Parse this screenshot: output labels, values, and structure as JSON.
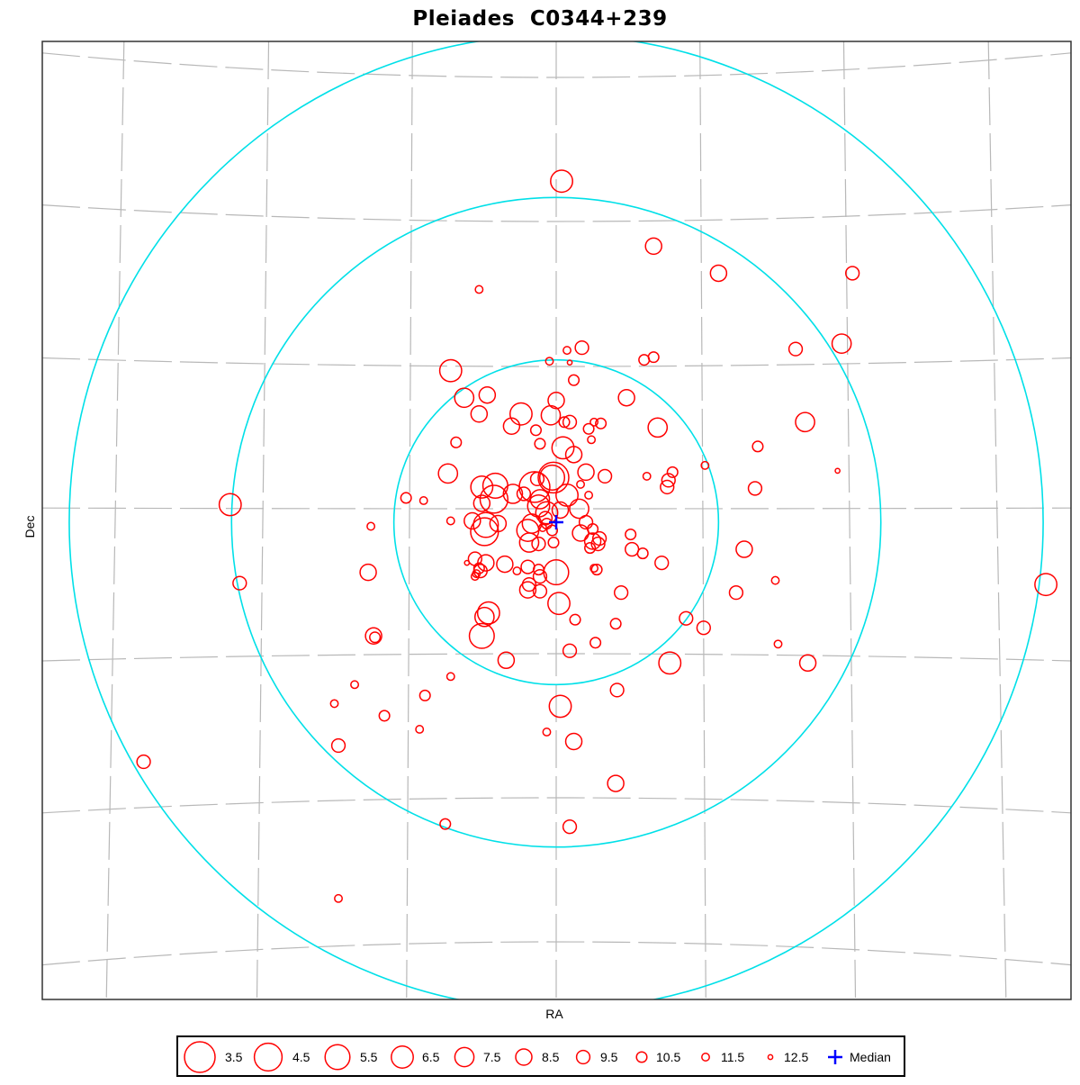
{
  "chart_data": {
    "type": "scatter",
    "title": "Pleiades  C0344+239",
    "xlabel": "RA",
    "ylabel": "Dec",
    "grid": true,
    "projection": "sky-gnomonic",
    "colors": {
      "stars": "#ff0000",
      "rings": "#00e0e8",
      "median": "#0000ff",
      "grid": "#b8b8b8"
    },
    "x_range": [
      -3.6,
      3.6
    ],
    "y_range": [
      -3.35,
      3.35
    ],
    "rings": [
      1.2,
      2.4,
      3.6
    ],
    "median": {
      "x": 0.0,
      "y": 0.0,
      "label": "Median"
    },
    "legend_title": "",
    "legend": [
      {
        "mag": 3.5,
        "label": "3.5"
      },
      {
        "mag": 4.5,
        "label": "4.5"
      },
      {
        "mag": 5.5,
        "label": "5.5"
      },
      {
        "mag": 6.5,
        "label": "6.5"
      },
      {
        "mag": 7.5,
        "label": "7.5"
      },
      {
        "mag": 8.5,
        "label": "8.5"
      },
      {
        "mag": 9.5,
        "label": "9.5"
      },
      {
        "mag": 10.5,
        "label": "10.5"
      },
      {
        "mag": 11.5,
        "label": "11.5"
      },
      {
        "mag": 12.5,
        "label": "12.5"
      }
    ],
    "stars": [
      {
        "x": 0.04,
        "y": 2.52,
        "mag": 6.5
      },
      {
        "x": 0.72,
        "y": 2.04,
        "mag": 8.5
      },
      {
        "x": 1.2,
        "y": 1.84,
        "mag": 8.5
      },
      {
        "x": 2.19,
        "y": 1.84,
        "mag": 9.5
      },
      {
        "x": -0.57,
        "y": 1.72,
        "mag": 11.5
      },
      {
        "x": 1.77,
        "y": 1.28,
        "mag": 9.5
      },
      {
        "x": 2.11,
        "y": 1.32,
        "mag": 7.5
      },
      {
        "x": 0.19,
        "y": 1.29,
        "mag": 9.5
      },
      {
        "x": 0.08,
        "y": 1.27,
        "mag": 11.5
      },
      {
        "x": 0.72,
        "y": 1.22,
        "mag": 10.5
      },
      {
        "x": 0.65,
        "y": 1.2,
        "mag": 10.5
      },
      {
        "x": -0.05,
        "y": 1.19,
        "mag": 11.5
      },
      {
        "x": 0.1,
        "y": 1.18,
        "mag": 12.5
      },
      {
        "x": -0.78,
        "y": 1.12,
        "mag": 6.5
      },
      {
        "x": 0.13,
        "y": 1.05,
        "mag": 10.5
      },
      {
        "x": -0.68,
        "y": 0.92,
        "mag": 7.5
      },
      {
        "x": -0.51,
        "y": 0.94,
        "mag": 8.5
      },
      {
        "x": 0.52,
        "y": 0.92,
        "mag": 8.5
      },
      {
        "x": 0.0,
        "y": 0.9,
        "mag": 8.5
      },
      {
        "x": -0.57,
        "y": 0.8,
        "mag": 8.5
      },
      {
        "x": -0.26,
        "y": 0.8,
        "mag": 6.5
      },
      {
        "x": -0.04,
        "y": 0.79,
        "mag": 7.5
      },
      {
        "x": 0.06,
        "y": 0.74,
        "mag": 10.5
      },
      {
        "x": 0.28,
        "y": 0.74,
        "mag": 11.5
      },
      {
        "x": 0.1,
        "y": 0.74,
        "mag": 9.5
      },
      {
        "x": 0.33,
        "y": 0.73,
        "mag": 10.5
      },
      {
        "x": 0.75,
        "y": 0.7,
        "mag": 7.5
      },
      {
        "x": 1.84,
        "y": 0.74,
        "mag": 7.5
      },
      {
        "x": -0.33,
        "y": 0.71,
        "mag": 8.5
      },
      {
        "x": 0.24,
        "y": 0.69,
        "mag": 10.5
      },
      {
        "x": -0.15,
        "y": 0.68,
        "mag": 10.5
      },
      {
        "x": 0.26,
        "y": 0.61,
        "mag": 11.5
      },
      {
        "x": -0.74,
        "y": 0.59,
        "mag": 10.5
      },
      {
        "x": -0.12,
        "y": 0.58,
        "mag": 10.5
      },
      {
        "x": 0.05,
        "y": 0.55,
        "mag": 6.5
      },
      {
        "x": 0.13,
        "y": 0.5,
        "mag": 8.5
      },
      {
        "x": 1.49,
        "y": 0.56,
        "mag": 10.5
      },
      {
        "x": -0.8,
        "y": 0.36,
        "mag": 7.5
      },
      {
        "x": -0.14,
        "y": 0.32,
        "mag": 9.5
      },
      {
        "x": -0.03,
        "y": 0.33,
        "mag": 5.5
      },
      {
        "x": -0.02,
        "y": 0.33,
        "mag": 3.5
      },
      {
        "x": 0.22,
        "y": 0.37,
        "mag": 8.5
      },
      {
        "x": 0.36,
        "y": 0.34,
        "mag": 9.5
      },
      {
        "x": 0.18,
        "y": 0.28,
        "mag": 11.5
      },
      {
        "x": 0.67,
        "y": 0.34,
        "mag": 11.5
      },
      {
        "x": 0.86,
        "y": 0.37,
        "mag": 10.5
      },
      {
        "x": 0.83,
        "y": 0.31,
        "mag": 9.5
      },
      {
        "x": 1.1,
        "y": 0.42,
        "mag": 11.5
      },
      {
        "x": 2.08,
        "y": 0.38,
        "mag": 12.5
      },
      {
        "x": -0.55,
        "y": 0.26,
        "mag": 6.5
      },
      {
        "x": -0.45,
        "y": 0.27,
        "mag": 5.5
      },
      {
        "x": -0.16,
        "y": 0.26,
        "mag": 3.5
      },
      {
        "x": -0.32,
        "y": 0.21,
        "mag": 7.5
      },
      {
        "x": -0.24,
        "y": 0.21,
        "mag": 9.5
      },
      {
        "x": -0.46,
        "y": 0.17,
        "mag": 4.5
      },
      {
        "x": -0.55,
        "y": 0.14,
        "mag": 8.5
      },
      {
        "x": -0.12,
        "y": 0.17,
        "mag": 7.5
      },
      {
        "x": 0.08,
        "y": 0.2,
        "mag": 6.5
      },
      {
        "x": 0.24,
        "y": 0.2,
        "mag": 11.5
      },
      {
        "x": 0.82,
        "y": 0.26,
        "mag": 9.5
      },
      {
        "x": 1.47,
        "y": 0.25,
        "mag": 9.5
      },
      {
        "x": -1.11,
        "y": 0.18,
        "mag": 10.5
      },
      {
        "x": -0.98,
        "y": 0.16,
        "mag": 11.5
      },
      {
        "x": -2.41,
        "y": 0.13,
        "mag": 6.5
      },
      {
        "x": -0.13,
        "y": 0.12,
        "mag": 6.5
      },
      {
        "x": -0.07,
        "y": 0.07,
        "mag": 6.5
      },
      {
        "x": 0.03,
        "y": 0.09,
        "mag": 8.5
      },
      {
        "x": 0.17,
        "y": 0.1,
        "mag": 7.5
      },
      {
        "x": -0.08,
        "y": 0.03,
        "mag": 9.5
      },
      {
        "x": -0.78,
        "y": 0.01,
        "mag": 11.5
      },
      {
        "x": -0.62,
        "y": 0.01,
        "mag": 8.5
      },
      {
        "x": -0.52,
        "y": -0.02,
        "mag": 5.5
      },
      {
        "x": -0.43,
        "y": -0.01,
        "mag": 8.5
      },
      {
        "x": -0.18,
        "y": -0.01,
        "mag": 7.5
      },
      {
        "x": -0.07,
        "y": -0.01,
        "mag": 10.5
      },
      {
        "x": 0.22,
        "y": 0.0,
        "mag": 9.5
      },
      {
        "x": -0.1,
        "y": -0.04,
        "mag": 11.5
      },
      {
        "x": 0.27,
        "y": -0.05,
        "mag": 10.5
      },
      {
        "x": -1.37,
        "y": -0.03,
        "mag": 11.5
      },
      {
        "x": -0.53,
        "y": -0.07,
        "mag": 4.5
      },
      {
        "x": -0.21,
        "y": -0.06,
        "mag": 6.5
      },
      {
        "x": -0.03,
        "y": -0.06,
        "mag": 10.5
      },
      {
        "x": 0.18,
        "y": -0.08,
        "mag": 8.5
      },
      {
        "x": 0.32,
        "y": -0.12,
        "mag": 9.5
      },
      {
        "x": 0.27,
        "y": -0.14,
        "mag": 8.5
      },
      {
        "x": 0.55,
        "y": -0.09,
        "mag": 10.5
      },
      {
        "x": -0.2,
        "y": -0.15,
        "mag": 7.5
      },
      {
        "x": -0.13,
        "y": -0.16,
        "mag": 9.5
      },
      {
        "x": -0.02,
        "y": -0.15,
        "mag": 10.5
      },
      {
        "x": 0.25,
        "y": -0.19,
        "mag": 10.5
      },
      {
        "x": 0.31,
        "y": -0.16,
        "mag": 9.5
      },
      {
        "x": 0.56,
        "y": -0.2,
        "mag": 9.5
      },
      {
        "x": 0.64,
        "y": -0.23,
        "mag": 10.5
      },
      {
        "x": 1.39,
        "y": -0.2,
        "mag": 8.5
      },
      {
        "x": -0.6,
        "y": -0.27,
        "mag": 9.5
      },
      {
        "x": -0.66,
        "y": -0.3,
        "mag": 12.5
      },
      {
        "x": -0.52,
        "y": -0.3,
        "mag": 8.5
      },
      {
        "x": -0.38,
        "y": -0.31,
        "mag": 8.5
      },
      {
        "x": -0.21,
        "y": -0.33,
        "mag": 9.5
      },
      {
        "x": -0.13,
        "y": -0.35,
        "mag": 10.5
      },
      {
        "x": 0.28,
        "y": -0.34,
        "mag": 11.5
      },
      {
        "x": 0.78,
        "y": -0.3,
        "mag": 9.5
      },
      {
        "x": -0.57,
        "y": -0.34,
        "mag": 10.5
      },
      {
        "x": -0.56,
        "y": -0.36,
        "mag": 9.5
      },
      {
        "x": -0.59,
        "y": -0.38,
        "mag": 11.5
      },
      {
        "x": -0.29,
        "y": -0.36,
        "mag": 11.5
      },
      {
        "x": 0.3,
        "y": -0.35,
        "mag": 10.5
      },
      {
        "x": -1.39,
        "y": -0.37,
        "mag": 8.5
      },
      {
        "x": -0.12,
        "y": -0.4,
        "mag": 9.5
      },
      {
        "x": 0.0,
        "y": -0.37,
        "mag": 5.5
      },
      {
        "x": -0.6,
        "y": -0.4,
        "mag": 11.5
      },
      {
        "x": -0.2,
        "y": -0.46,
        "mag": 9.5
      },
      {
        "x": -2.34,
        "y": -0.45,
        "mag": 9.5
      },
      {
        "x": -0.21,
        "y": -0.5,
        "mag": 8.5
      },
      {
        "x": -0.12,
        "y": -0.51,
        "mag": 9.5
      },
      {
        "x": 0.48,
        "y": -0.52,
        "mag": 9.5
      },
      {
        "x": 1.33,
        "y": -0.52,
        "mag": 9.5
      },
      {
        "x": 1.62,
        "y": -0.43,
        "mag": 11.5
      },
      {
        "x": 0.02,
        "y": -0.6,
        "mag": 6.5
      },
      {
        "x": -0.5,
        "y": -0.67,
        "mag": 6.5
      },
      {
        "x": -0.53,
        "y": -0.7,
        "mag": 7.5
      },
      {
        "x": 0.14,
        "y": -0.72,
        "mag": 10.5
      },
      {
        "x": 0.44,
        "y": -0.75,
        "mag": 10.5
      },
      {
        "x": 0.96,
        "y": -0.71,
        "mag": 9.5
      },
      {
        "x": 1.09,
        "y": -0.78,
        "mag": 9.5
      },
      {
        "x": -0.55,
        "y": -0.84,
        "mag": 5.5
      },
      {
        "x": -1.35,
        "y": -0.84,
        "mag": 8.5
      },
      {
        "x": -1.34,
        "y": -0.85,
        "mag": 10.5
      },
      {
        "x": 0.29,
        "y": -0.89,
        "mag": 10.5
      },
      {
        "x": 0.1,
        "y": -0.95,
        "mag": 9.5
      },
      {
        "x": 1.64,
        "y": -0.9,
        "mag": 11.5
      },
      {
        "x": -0.37,
        "y": -1.02,
        "mag": 8.5
      },
      {
        "x": 0.84,
        "y": -1.04,
        "mag": 6.5
      },
      {
        "x": 1.86,
        "y": -1.04,
        "mag": 8.5
      },
      {
        "x": -0.78,
        "y": -1.14,
        "mag": 11.5
      },
      {
        "x": -1.49,
        "y": -1.2,
        "mag": 11.5
      },
      {
        "x": -0.97,
        "y": -1.28,
        "mag": 10.5
      },
      {
        "x": 0.45,
        "y": -1.24,
        "mag": 9.5
      },
      {
        "x": -1.64,
        "y": -1.34,
        "mag": 11.5
      },
      {
        "x": 0.03,
        "y": -1.36,
        "mag": 6.5
      },
      {
        "x": -1.27,
        "y": -1.43,
        "mag": 10.5
      },
      {
        "x": -1.01,
        "y": -1.53,
        "mag": 11.5
      },
      {
        "x": -0.07,
        "y": -1.55,
        "mag": 11.5
      },
      {
        "x": 0.13,
        "y": -1.62,
        "mag": 8.5
      },
      {
        "x": -1.61,
        "y": -1.65,
        "mag": 9.5
      },
      {
        "x": 0.44,
        "y": -1.93,
        "mag": 8.5
      },
      {
        "x": -3.05,
        "y": -1.77,
        "mag": 9.5
      },
      {
        "x": -0.82,
        "y": -2.23,
        "mag": 10.5
      },
      {
        "x": 0.1,
        "y": -2.25,
        "mag": 9.5
      },
      {
        "x": -1.61,
        "y": -2.78,
        "mag": 11.5
      },
      {
        "x": 3.62,
        "y": -0.46,
        "mag": 6.5
      }
    ]
  }
}
